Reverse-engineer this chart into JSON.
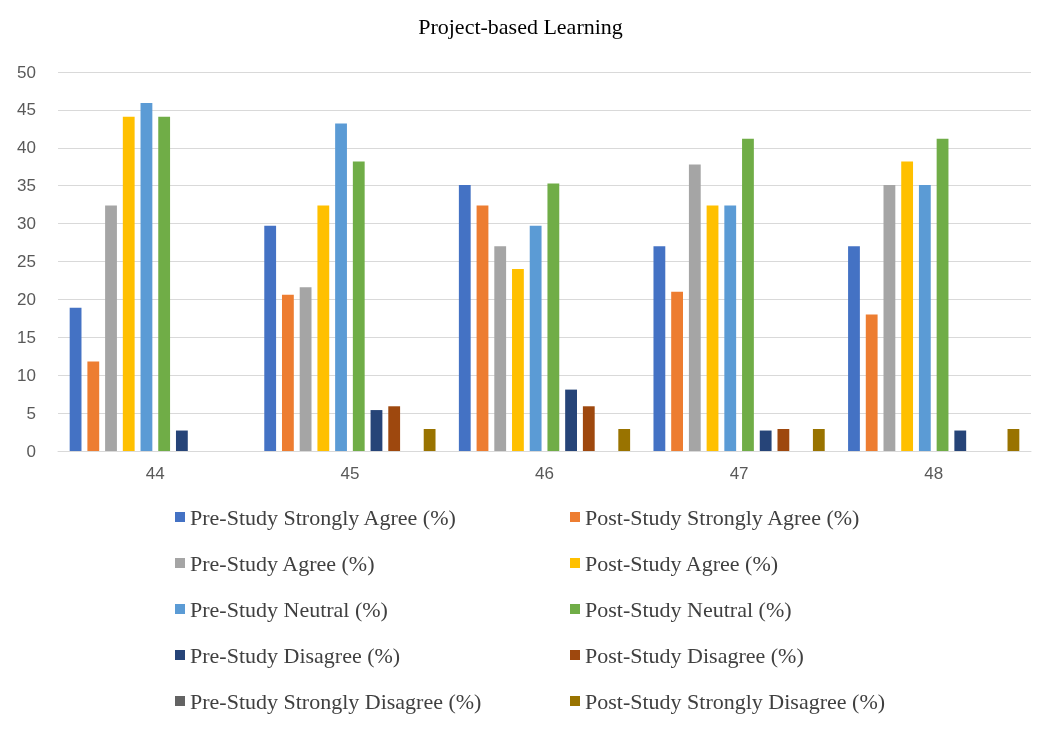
{
  "chart_data": {
    "type": "bar",
    "title": "Project-based Learning",
    "categories": [
      "44",
      "45",
      "46",
      "47",
      "48"
    ],
    "series": [
      {
        "name": "Pre-Study Strongly Agree (%)",
        "color": "#4472c4",
        "values": [
          18.9,
          29.7,
          35.1,
          27.0,
          27.0
        ]
      },
      {
        "name": "Post-Study Strongly Agree (%)",
        "color": "#ed7d31",
        "values": [
          11.8,
          20.6,
          32.4,
          21.0,
          18.0
        ]
      },
      {
        "name": "Pre-Study Agree (%)",
        "color": "#a5a5a5",
        "values": [
          32.4,
          21.6,
          27.0,
          37.8,
          35.1
        ]
      },
      {
        "name": "Post-Study Agree (%)",
        "color": "#ffc000",
        "values": [
          44.1,
          32.4,
          24.0,
          32.4,
          38.2
        ]
      },
      {
        "name": "Pre-Study Neutral (%)",
        "color": "#5b9bd5",
        "values": [
          45.9,
          43.2,
          29.7,
          32.4,
          35.1
        ]
      },
      {
        "name": "Post-Study Neutral (%)",
        "color": "#70ad47",
        "values": [
          44.1,
          38.2,
          35.3,
          41.2,
          41.2
        ]
      },
      {
        "name": "Pre-Study Disagree (%)",
        "color": "#264478",
        "values": [
          2.7,
          5.4,
          8.1,
          2.7,
          2.7
        ]
      },
      {
        "name": "Post-Study Disagree (%)",
        "color": "#9e480e",
        "values": [
          0,
          5.9,
          5.9,
          2.9,
          0
        ]
      },
      {
        "name": "Pre-Study Strongly Disagree (%)",
        "color": "#636363",
        "values": [
          0,
          0,
          0,
          0,
          0
        ]
      },
      {
        "name": "Post-Study Strongly Disagree (%)",
        "color": "#997300",
        "values": [
          0,
          2.9,
          2.9,
          2.9,
          2.9
        ]
      }
    ],
    "ylim": [
      0,
      50
    ],
    "yticks": [
      0,
      5,
      10,
      15,
      20,
      25,
      30,
      35,
      40,
      45,
      50
    ],
    "grid": "y",
    "legend": "bottom"
  }
}
